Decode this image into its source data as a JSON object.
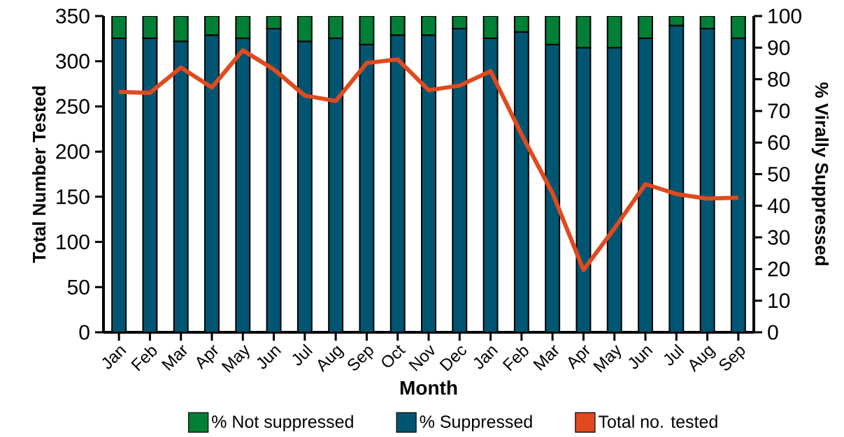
{
  "chart_data": {
    "type": "bar",
    "xlabel": "Month",
    "ylabel": "Total Number Tested",
    "y2label": "% Virally Suppressed",
    "categories": [
      "Jan",
      "Feb",
      "Mar",
      "Apr",
      "May",
      "Jun",
      "Jul",
      "Aug",
      "Sep",
      "Oct",
      "Nov",
      "Dec",
      "Jan",
      "Feb",
      "Mar",
      "Apr",
      "May",
      "Jun",
      "Jul",
      "Aug",
      "Sep"
    ],
    "stacked": true,
    "legend": "bottom",
    "ylim": [
      0,
      350
    ],
    "yticks": [
      0,
      50,
      100,
      150,
      200,
      250,
      300,
      350
    ],
    "y2lim": [
      0,
      100
    ],
    "y2ticks": [
      0,
      10,
      20,
      30,
      40,
      50,
      60,
      70,
      80,
      90,
      100
    ],
    "series": [
      {
        "name": "% Suppressed",
        "axis": "y2",
        "color": "#005672",
        "values": [
          93,
          93,
          92,
          94,
          93,
          96,
          92,
          93,
          91,
          94,
          94,
          96,
          93,
          95,
          91,
          90,
          90,
          93,
          97,
          96,
          93
        ]
      },
      {
        "name": "% Not suppressed",
        "axis": "y2",
        "color": "#008037",
        "values": [
          7,
          7,
          8,
          6,
          7,
          4,
          8,
          7,
          9,
          6,
          6,
          4,
          7,
          5,
          9,
          10,
          10,
          7,
          3,
          4,
          7
        ]
      },
      {
        "name": "Total no. tested",
        "type": "line",
        "color": "#e04a1e",
        "values": [
          266,
          265,
          293,
          271,
          312,
          291,
          262,
          256,
          298,
          302,
          268,
          273,
          289,
          219,
          154,
          69,
          115,
          164,
          153,
          148,
          149
        ]
      }
    ]
  }
}
